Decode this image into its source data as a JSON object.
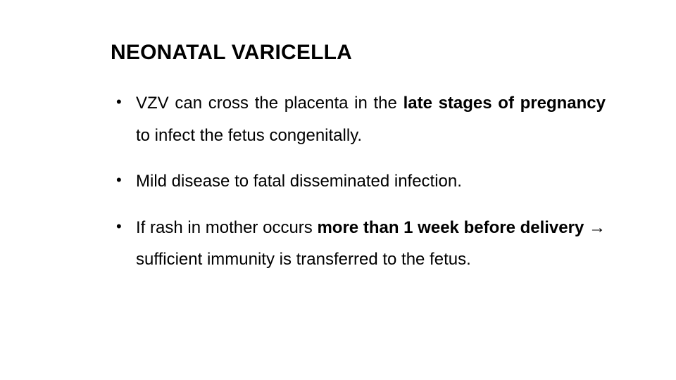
{
  "slide": {
    "background_color": "#ffffff",
    "text_color": "#000000",
    "title": {
      "text": "NEONATAL VARICELLA",
      "fontsize": 30,
      "fontweight": 700
    },
    "bullets": {
      "fontsize": 24,
      "line_height": 1.9,
      "marker": "•",
      "items": [
        {
          "runs": [
            {
              "text": "VZV can cross the placenta in the ",
              "bold": false
            },
            {
              "text": "late stages of pregnancy",
              "bold": true
            },
            {
              "text": "  to infect the fetus congenitally.",
              "bold": false
            }
          ]
        },
        {
          "runs": [
            {
              "text": "Mild disease to fatal disseminated infection.",
              "bold": false
            }
          ]
        },
        {
          "runs": [
            {
              "text": "If  rash  in mother occurs ",
              "bold": false
            },
            {
              "text": "more than 1 week before  delivery",
              "bold": true
            },
            {
              "text": " → sufficient immunity is transferred to the fetus.",
              "bold": false
            }
          ]
        }
      ]
    }
  }
}
